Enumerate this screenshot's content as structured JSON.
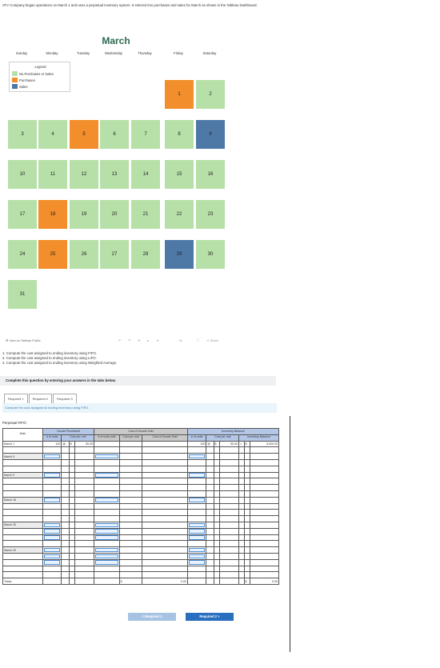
{
  "intro": "ATV Company began operations on March 1 and uses a perpetual inventory system. It entered into purchases and sales for March as shown in the Tableau Dashboard.",
  "calendar": {
    "title": "March",
    "days": [
      "Sunday",
      "Monday",
      "Tuesday",
      "Wednesday",
      "Thursday",
      "Friday",
      "Saturday"
    ],
    "weeks": [
      [
        null,
        null,
        null,
        null,
        null,
        {
          "n": "1",
          "t": "purch"
        },
        {
          "n": "2",
          "t": "none"
        }
      ],
      [
        {
          "n": "3",
          "t": "none"
        },
        {
          "n": "4",
          "t": "none"
        },
        {
          "n": "5",
          "t": "purch"
        },
        {
          "n": "6",
          "t": "none"
        },
        {
          "n": "7",
          "t": "none"
        },
        {
          "n": "8",
          "t": "none"
        },
        {
          "n": "9",
          "t": "sales"
        }
      ],
      [
        {
          "n": "10",
          "t": "none"
        },
        {
          "n": "11",
          "t": "none"
        },
        {
          "n": "12",
          "t": "none"
        },
        {
          "n": "13",
          "t": "none"
        },
        {
          "n": "14",
          "t": "none"
        },
        {
          "n": "15",
          "t": "none"
        },
        {
          "n": "16",
          "t": "none"
        }
      ],
      [
        {
          "n": "17",
          "t": "none"
        },
        {
          "n": "18",
          "t": "purch"
        },
        {
          "n": "19",
          "t": "none"
        },
        {
          "n": "20",
          "t": "none"
        },
        {
          "n": "21",
          "t": "none"
        },
        {
          "n": "22",
          "t": "none"
        },
        {
          "n": "23",
          "t": "none"
        }
      ],
      [
        {
          "n": "24",
          "t": "none"
        },
        {
          "n": "25",
          "t": "purch"
        },
        {
          "n": "26",
          "t": "none"
        },
        {
          "n": "27",
          "t": "none"
        },
        {
          "n": "28",
          "t": "none"
        },
        {
          "n": "29",
          "t": "sales"
        },
        {
          "n": "30",
          "t": "none"
        }
      ],
      [
        {
          "n": "31",
          "t": "none"
        },
        null,
        null,
        null,
        null,
        null,
        null
      ]
    ],
    "legend": {
      "title": "Legend",
      "items": [
        {
          "label": "No Purchases or Sales",
          "color": "#b7e0a9"
        },
        {
          "label": "Purchases",
          "color": "#f28e2b"
        },
        {
          "label": "Sales",
          "color": "#4e79a7"
        }
      ]
    }
  },
  "tableau_footer": {
    "view_label": "View on Tableau Public",
    "share_label": "Share"
  },
  "questions": [
    "1. Compute the cost assigned to ending inventory using FIFO.",
    "2. Compute the cost assigned to ending inventory using LIFO.",
    "3. Compute the cost assigned to ending inventory using Weighted Average."
  ],
  "instruction": "Complete this question by entering your answers in the tabs below.",
  "tabs": [
    "Required 1",
    "Required 2",
    "Required 3"
  ],
  "required_text": "Compute the cost assigned to ending inventory using FIFO.",
  "table": {
    "caption": "Perpetual FIFO:",
    "group_headers": {
      "goods": "Goods Purchased",
      "cogs": "Cost of Goods Sold",
      "inv": "Inventory Balance"
    },
    "col_headers": {
      "date": "Date",
      "units": "# of units",
      "cpu": "Cost per unit",
      "units_sold": "# of units sold",
      "cogs_cpu": "Cost per unit",
      "cogs": "Cost of Goods Sold",
      "inv_units": "# of units",
      "inv_cpu": "Cost per unit",
      "inv_bal": "Inventory Balance"
    },
    "march1": {
      "date": "March 1",
      "units": "100",
      "at": "@",
      "dollar": "$",
      "cpu": "50.00",
      "inv_units": "100",
      "inv_at": "@",
      "inv_dollar": "$",
      "inv_cpu": "50.00",
      "eq": "=",
      "bal_dollar": "$",
      "bal": "5,000.00"
    },
    "dates": [
      "March 5",
      "March 9",
      "March 18",
      "March 25",
      "March 29"
    ],
    "totals": {
      "label": "Totals",
      "cogs_dollar": "$",
      "cogs_total": "0.00",
      "inv_dollar": "$",
      "inv_total": "0.00"
    }
  },
  "buttons": {
    "prev": "< Required 1",
    "next": "Required 2 >"
  }
}
